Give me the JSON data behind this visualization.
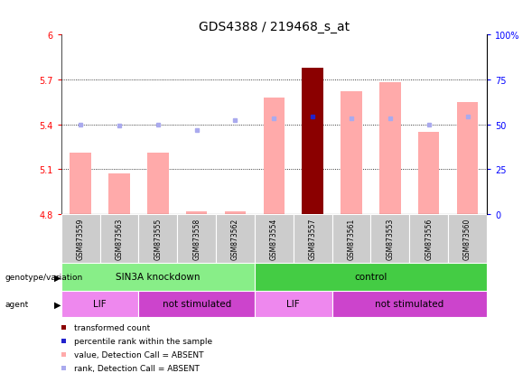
{
  "title": "GDS4388 / 219468_s_at",
  "samples": [
    "GSM873559",
    "GSM873563",
    "GSM873555",
    "GSM873558",
    "GSM873562",
    "GSM873554",
    "GSM873557",
    "GSM873561",
    "GSM873553",
    "GSM873556",
    "GSM873560"
  ],
  "bar_values": [
    5.21,
    5.07,
    5.21,
    4.82,
    4.82,
    5.58,
    5.78,
    5.62,
    5.68,
    5.35,
    5.55
  ],
  "bar_colors": [
    "#ffaaaa",
    "#ffaaaa",
    "#ffaaaa",
    "#ffaaaa",
    "#ffaaaa",
    "#ffaaaa",
    "#8b0000",
    "#ffaaaa",
    "#ffaaaa",
    "#ffaaaa",
    "#ffaaaa"
  ],
  "rank_values": [
    5.4,
    5.39,
    5.4,
    5.36,
    5.43,
    5.44,
    5.45,
    5.44,
    5.44,
    5.4,
    5.45
  ],
  "rank_colors": [
    "#aaaaee",
    "#aaaaee",
    "#aaaaee",
    "#aaaaee",
    "#aaaaee",
    "#aaaaee",
    "#2222cc",
    "#aaaaee",
    "#aaaaee",
    "#aaaaee",
    "#aaaaee"
  ],
  "ymin": 4.8,
  "ymax": 6.0,
  "yticks": [
    4.8,
    5.1,
    5.4,
    5.7,
    6.0
  ],
  "ytick_labels": [
    "4.8",
    "5.1",
    "5.4",
    "5.7",
    "6"
  ],
  "y2min": 0,
  "y2max": 100,
  "y2ticks": [
    0,
    25,
    50,
    75,
    100
  ],
  "y2tick_labels": [
    "0",
    "25",
    "50",
    "75",
    "100%"
  ],
  "dotted_lines": [
    5.1,
    5.4,
    5.7
  ],
  "groups": [
    {
      "label": "SIN3A knockdown",
      "start": 0,
      "end": 5,
      "color": "#88ee88"
    },
    {
      "label": "control",
      "start": 5,
      "end": 11,
      "color": "#44cc44"
    }
  ],
  "agents": [
    {
      "label": "LIF",
      "start": 0,
      "end": 2,
      "color": "#ee88ee"
    },
    {
      "label": "not stimulated",
      "start": 2,
      "end": 5,
      "color": "#cc44cc"
    },
    {
      "label": "LIF",
      "start": 5,
      "end": 7,
      "color": "#ee88ee"
    },
    {
      "label": "not stimulated",
      "start": 7,
      "end": 11,
      "color": "#cc44cc"
    }
  ],
  "legend_items": [
    {
      "label": "transformed count",
      "color": "#8b0000"
    },
    {
      "label": "percentile rank within the sample",
      "color": "#2222cc"
    },
    {
      "label": "value, Detection Call = ABSENT",
      "color": "#ffaaaa"
    },
    {
      "label": "rank, Detection Call = ABSENT",
      "color": "#aaaaee"
    }
  ],
  "title_fontsize": 10,
  "tick_fontsize": 7,
  "label_fontsize": 7.5,
  "sample_fontsize": 5.5,
  "legend_fontsize": 6.5
}
